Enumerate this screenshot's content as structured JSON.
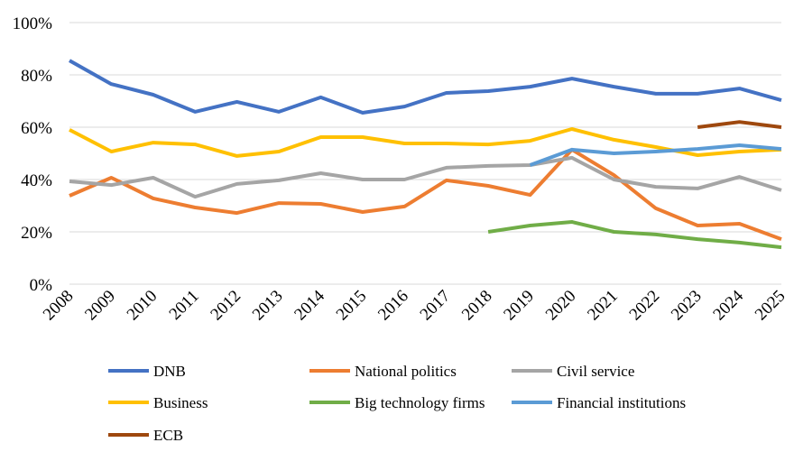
{
  "chart_data": {
    "type": "line",
    "categories": [
      "2008",
      "2009",
      "2010",
      "2011",
      "2012",
      "2013",
      "2014",
      "2015",
      "2016",
      "2017",
      "2018",
      "2019",
      "2020",
      "2021",
      "2022",
      "2023",
      "2024",
      "2025"
    ],
    "ylim": [
      0,
      100
    ],
    "yticks": [
      {
        "value": 0,
        "label": "0%"
      },
      {
        "value": 20,
        "label": "20%"
      },
      {
        "value": 40,
        "label": "40%"
      },
      {
        "value": 60,
        "label": "60%"
      },
      {
        "value": 80,
        "label": "80%"
      },
      {
        "value": 100,
        "label": "100%"
      }
    ],
    "grid": true,
    "series": [
      {
        "name": "DNB",
        "color": "#4472c4",
        "values": [
          85.5,
          76.5,
          72.4,
          65.9,
          69.7,
          65.9,
          71.4,
          65.5,
          67.9,
          73.1,
          73.8,
          75.5,
          78.6,
          75.5,
          72.8,
          72.8,
          74.8,
          70.3
        ]
      },
      {
        "name": "National politics",
        "color": "#ed7d31",
        "values": [
          33.8,
          40.7,
          32.8,
          29.3,
          27.2,
          31,
          30.7,
          27.6,
          29.7,
          39.7,
          37.6,
          34.1,
          51.4,
          41.7,
          29,
          22.4,
          23.1,
          17.2
        ]
      },
      {
        "name": "Civil service",
        "color": "#a5a5a5",
        "values": [
          39.3,
          37.9,
          40.7,
          33.4,
          38.3,
          39.7,
          42.4,
          40,
          40,
          44.5,
          45.2,
          45.5,
          48.3,
          40,
          37.2,
          36.6,
          41,
          35.9
        ]
      },
      {
        "name": "Business",
        "color": "#ffc000",
        "values": [
          59,
          50.7,
          54.1,
          53.4,
          49,
          50.7,
          56.2,
          56.2,
          53.8,
          53.8,
          53.4,
          54.8,
          59.3,
          55.2,
          52.4,
          49.3,
          50.7,
          51.4
        ]
      },
      {
        "name": "Big technology firms",
        "color": "#70ad47",
        "values": [
          null,
          null,
          null,
          null,
          null,
          null,
          null,
          null,
          null,
          null,
          20,
          22.4,
          23.8,
          20,
          19,
          17.2,
          15.9,
          14.1
        ]
      },
      {
        "name": "Financial institutions",
        "color": "#5b9bd5",
        "values": [
          null,
          null,
          null,
          null,
          null,
          null,
          null,
          null,
          null,
          null,
          null,
          45.5,
          51.4,
          50,
          50.7,
          51.7,
          53.1,
          51.7
        ]
      },
      {
        "name": "ECB",
        "color": "#9e480e",
        "values": [
          null,
          null,
          null,
          null,
          null,
          null,
          null,
          null,
          null,
          null,
          null,
          null,
          null,
          null,
          null,
          60,
          62,
          60
        ]
      }
    ]
  }
}
